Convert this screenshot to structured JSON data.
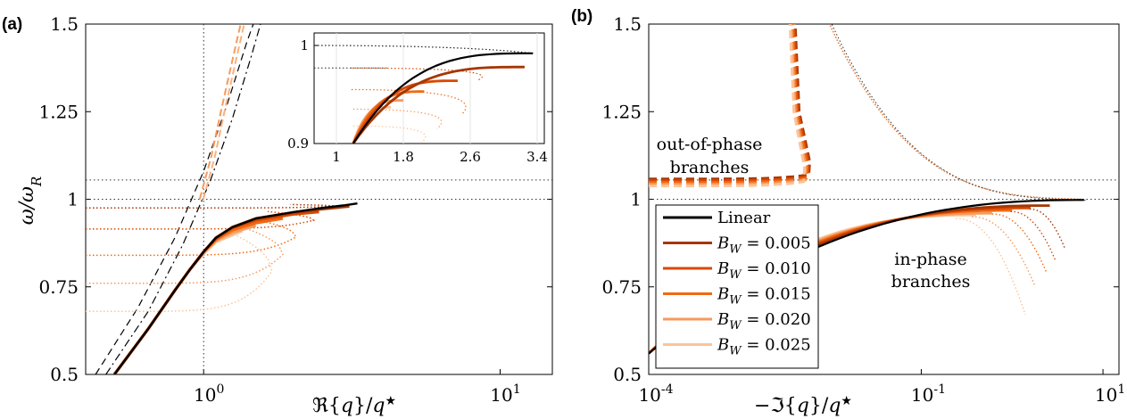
{
  "chart_data": [
    {
      "panel_label": "(a)",
      "type": "line",
      "xscale": "log",
      "xlim": [
        0.4,
        15
      ],
      "ylim": [
        0.5,
        1.5
      ],
      "xlabel": "ℜ{q}/q*",
      "ylabel": "ω/ω_R",
      "xticks": [
        {
          "value": 1,
          "base": "10",
          "exp": "0"
        },
        {
          "value": 10,
          "base": "10",
          "exp": "1"
        }
      ],
      "yticks": [
        "0.5",
        "0.75",
        "1",
        "1.25",
        "1.5"
      ],
      "ref_lines": {
        "h": [
          1.0,
          1.055
        ],
        "v": [
          1
        ]
      },
      "dispersion_curves": [
        {
          "style": "dashed",
          "x": [
            0.432,
            0.6,
            0.8,
            1.0,
            1.2,
            1.4,
            1.5
          ],
          "y": [
            0.5,
            0.69,
            0.89,
            1.08,
            1.27,
            1.45,
            1.52
          ]
        },
        {
          "style": "dashdot",
          "x": [
            0.468,
            0.65,
            0.85,
            1.05,
            1.25,
            1.45,
            1.58
          ],
          "y": [
            0.5,
            0.68,
            0.87,
            1.05,
            1.23,
            1.41,
            1.52
          ]
        },
        {
          "style": "dashed-orange",
          "x": [
            0.97,
            1.06,
            1.15,
            1.26,
            1.35
          ],
          "y": [
            1.0,
            1.12,
            1.26,
            1.41,
            1.52
          ]
        }
      ],
      "series": [
        {
          "name": "Linear",
          "x": [
            0.5,
            0.65,
            0.8,
            0.9,
            1.0,
            1.1,
            1.25,
            1.5,
            2.0,
            2.5,
            3.0,
            3.3
          ],
          "y": [
            0.5,
            0.63,
            0.74,
            0.8,
            0.85,
            0.89,
            0.92,
            0.945,
            0.963,
            0.975,
            0.983,
            0.988
          ]
        },
        {
          "name": "B_W = 0.005",
          "x": [
            0.5,
            0.65,
            0.8,
            0.9,
            1.0,
            1.1,
            1.25,
            1.5,
            2.0,
            2.5,
            3.1
          ],
          "y": [
            0.5,
            0.63,
            0.74,
            0.8,
            0.85,
            0.89,
            0.92,
            0.945,
            0.962,
            0.972,
            0.98
          ]
        },
        {
          "name": "B_W = 0.010",
          "x": [
            0.5,
            0.65,
            0.8,
            0.9,
            1.0,
            1.1,
            1.25,
            1.5,
            2.0,
            2.45
          ],
          "y": [
            0.5,
            0.63,
            0.74,
            0.8,
            0.85,
            0.888,
            0.918,
            0.94,
            0.957,
            0.964
          ]
        },
        {
          "name": "B_W = 0.015",
          "x": [
            0.5,
            0.65,
            0.8,
            0.9,
            1.0,
            1.1,
            1.25,
            1.5,
            1.85
          ],
          "y": [
            0.5,
            0.63,
            0.74,
            0.8,
            0.85,
            0.885,
            0.912,
            0.932,
            0.945
          ]
        },
        {
          "name": "B_W = 0.020",
          "x": [
            0.5,
            0.65,
            0.8,
            0.9,
            1.0,
            1.1,
            1.25,
            1.5
          ],
          "y": [
            0.5,
            0.63,
            0.74,
            0.8,
            0.848,
            0.882,
            0.905,
            0.925
          ]
        },
        {
          "name": "B_W = 0.025",
          "x": [
            0.5,
            0.65,
            0.8,
            0.9,
            1.0,
            1.1,
            1.25,
            1.35
          ],
          "y": [
            0.5,
            0.63,
            0.74,
            0.8,
            0.845,
            0.878,
            0.898,
            0.91
          ]
        }
      ],
      "dotted_branches": [
        {
          "y0": 0.975,
          "xmax": 2.8,
          "yend": 0.985
        },
        {
          "y0": 0.915,
          "xmax": 2.35,
          "yend": 0.965
        },
        {
          "y0": 0.84,
          "xmax": 2.05,
          "yend": 0.945
        },
        {
          "y0": 0.76,
          "xmax": 1.85,
          "yend": 0.925
        },
        {
          "y0": 0.68,
          "xmax": 1.7,
          "yend": 0.91
        }
      ],
      "inset": {
        "xlim": [
          1,
          3.4
        ],
        "ylim": [
          0.9,
          1.0
        ],
        "xticks": [
          "1",
          "1.8",
          "2.6",
          "3.4"
        ],
        "yticks": [
          "0.9",
          "1"
        ]
      }
    },
    {
      "panel_label": "(b)",
      "type": "line",
      "xscale": "log",
      "xlim": [
        0.0001,
        15
      ],
      "ylim": [
        0.5,
        1.5
      ],
      "xlabel": "−ℑ{q}/q*",
      "ylabel": "",
      "xticks": [
        {
          "value": 0.0001,
          "base": "10",
          "exp": "-4"
        },
        {
          "value": 0.1,
          "base": "10",
          "exp": "-1"
        },
        {
          "value": 10,
          "base": "10",
          "exp": "1"
        }
      ],
      "yticks": [
        "0.5",
        "0.75",
        "1",
        "1.25",
        "1.5"
      ],
      "ref_lines": {
        "h": [
          1.0,
          1.055
        ]
      },
      "annotations": [
        {
          "lines": [
            "out-of-phase",
            "branches"
          ]
        },
        {
          "lines": [
            "in-phase",
            "branches"
          ]
        }
      ],
      "legend": {
        "location": "lower-left",
        "entries": [
          "Linear",
          "B_W = 0.005",
          "B_W = 0.010",
          "B_W = 0.015",
          "B_W = 0.020",
          "B_W = 0.025"
        ]
      }
    }
  ],
  "colors": {
    "Linear": "#000000",
    "B_W = 0.005": "#a63603",
    "B_W = 0.010": "#d94801",
    "B_W = 0.015": "#f16913",
    "B_W = 0.020": "#f69a5c",
    "B_W = 0.025": "#fbc49a",
    "dotted_ref": "#333333"
  }
}
